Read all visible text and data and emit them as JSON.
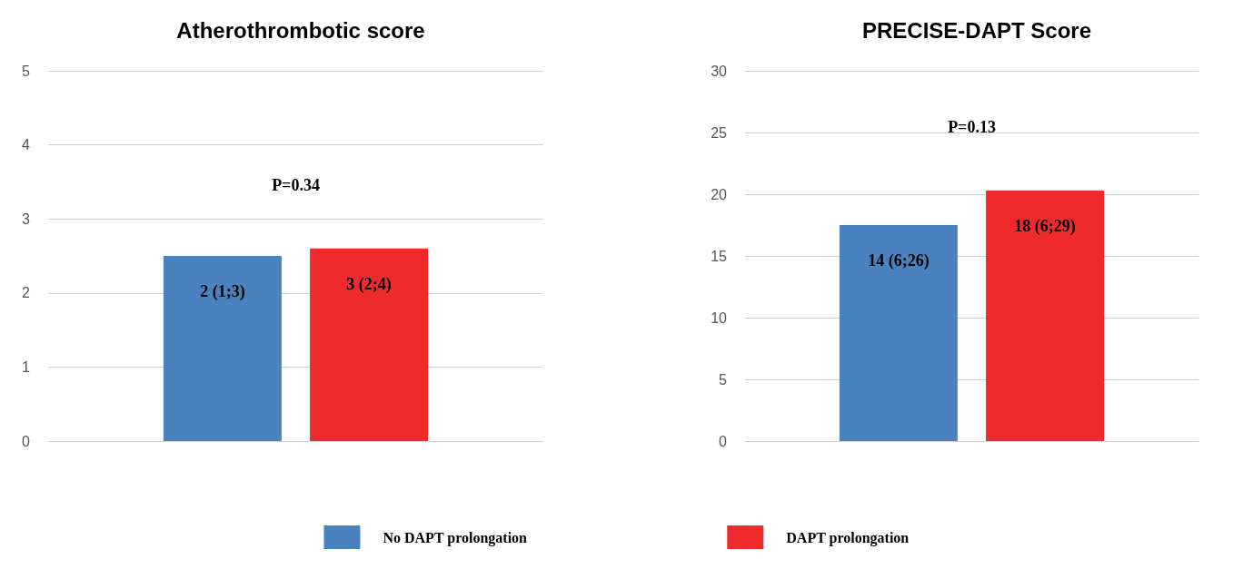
{
  "chart_data": [
    {
      "type": "bar",
      "title": "Atherothrombotic score",
      "categories": [
        null
      ],
      "series": [
        {
          "name": "No DAPT prolongation",
          "color": "#4a82c0",
          "values": [
            2.5
          ]
        },
        {
          "name": "DAPT prolongation",
          "color": "#ee2a2c",
          "values": [
            2.6
          ]
        }
      ],
      "ylim": [
        0,
        5
      ],
      "yticks": [
        0,
        1,
        2,
        3,
        4,
        5
      ],
      "grid": "y",
      "legend": "bottom",
      "annotations": [
        "P=0.34",
        {
          "text": "2 (1;3)",
          "y": 2.5
        },
        {
          "text": "3 (2;4)",
          "y": 2.6
        }
      ]
    },
    {
      "type": "bar",
      "title": "PRECISE-DAPT Score",
      "categories": [
        null
      ],
      "series": [
        {
          "color": "#4a82c0",
          "values": [
            17.5
          ]
        },
        {
          "color": "#ee2a2c",
          "values": [
            20.3
          ]
        }
      ],
      "ylim": [
        0,
        30
      ],
      "yticks": [
        0,
        5,
        10,
        15,
        20,
        25,
        30
      ],
      "grid": "y",
      "annotations": [
        "P=0.13",
        {
          "text": "14 (6;26)",
          "y": 17.5
        },
        {
          "text": "18 (6;29)",
          "y": 20.3
        }
      ]
    }
  ]
}
